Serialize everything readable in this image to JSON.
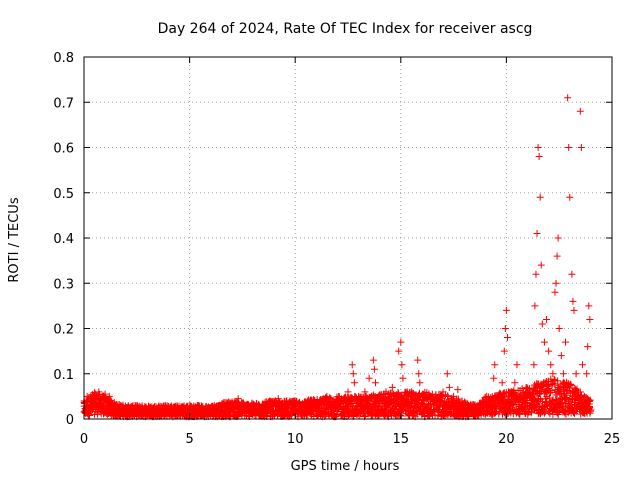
{
  "chart_data": {
    "type": "scatter",
    "title": "Day 264 of 2024, Rate Of TEC Index for receiver ascg",
    "xlabel": "GPS time / hours",
    "ylabel": "ROTI / TECUs",
    "xlim": [
      0,
      25
    ],
    "ylim": [
      0,
      0.8
    ],
    "x_ticks": [
      "0",
      "5",
      "10",
      "15",
      "20",
      "25"
    ],
    "y_ticks": [
      "0",
      "0.1",
      "0.2",
      "0.3",
      "0.4",
      "0.5",
      "0.6",
      "0.7",
      "0.8"
    ],
    "grid": true,
    "marker": "+",
    "color": "#ff0000",
    "points": [
      [
        0.05,
        0.015
      ],
      [
        0.15,
        0.05
      ],
      [
        0.3,
        0.025
      ],
      [
        0.5,
        0.03
      ],
      [
        0.7,
        0.06
      ],
      [
        0.8,
        0.045
      ],
      [
        0.9,
        0.05
      ],
      [
        1.0,
        0.055
      ],
      [
        1.1,
        0.04
      ],
      [
        1.2,
        0.05
      ],
      [
        1.3,
        0.035
      ],
      [
        1.5,
        0.03
      ],
      [
        1.7,
        0.025
      ],
      [
        2.0,
        0.02
      ],
      [
        2.3,
        0.025
      ],
      [
        2.6,
        0.02
      ],
      [
        2.9,
        0.025
      ],
      [
        3.2,
        0.02
      ],
      [
        3.5,
        0.025
      ],
      [
        3.8,
        0.02
      ],
      [
        4.1,
        0.02
      ],
      [
        4.4,
        0.025
      ],
      [
        4.7,
        0.025
      ],
      [
        5.0,
        0.02
      ],
      [
        5.3,
        0.025
      ],
      [
        5.6,
        0.02
      ],
      [
        5.9,
        0.02
      ],
      [
        6.2,
        0.025
      ],
      [
        6.5,
        0.02
      ],
      [
        6.8,
        0.025
      ],
      [
        7.1,
        0.03
      ],
      [
        7.3,
        0.045
      ],
      [
        7.5,
        0.035
      ],
      [
        7.7,
        0.03
      ],
      [
        8.0,
        0.025
      ],
      [
        8.3,
        0.03
      ],
      [
        8.6,
        0.03
      ],
      [
        8.8,
        0.04
      ],
      [
        9.0,
        0.035
      ],
      [
        9.2,
        0.045
      ],
      [
        9.4,
        0.035
      ],
      [
        9.6,
        0.04
      ],
      [
        9.8,
        0.03
      ],
      [
        10.0,
        0.03
      ],
      [
        10.3,
        0.025
      ],
      [
        10.6,
        0.03
      ],
      [
        10.9,
        0.035
      ],
      [
        11.2,
        0.035
      ],
      [
        11.5,
        0.05
      ],
      [
        11.8,
        0.04
      ],
      [
        12.0,
        0.04
      ],
      [
        12.3,
        0.045
      ],
      [
        12.5,
        0.06
      ],
      [
        12.7,
        0.12
      ],
      [
        12.75,
        0.1
      ],
      [
        12.8,
        0.08
      ],
      [
        13.0,
        0.05
      ],
      [
        13.3,
        0.06
      ],
      [
        13.5,
        0.09
      ],
      [
        13.7,
        0.13
      ],
      [
        13.75,
        0.11
      ],
      [
        13.8,
        0.08
      ],
      [
        14.0,
        0.05
      ],
      [
        14.3,
        0.06
      ],
      [
        14.6,
        0.07
      ],
      [
        14.9,
        0.15
      ],
      [
        15.0,
        0.17
      ],
      [
        15.05,
        0.12
      ],
      [
        15.1,
        0.09
      ],
      [
        15.3,
        0.06
      ],
      [
        15.5,
        0.06
      ],
      [
        15.8,
        0.13
      ],
      [
        15.85,
        0.1
      ],
      [
        15.9,
        0.08
      ],
      [
        16.1,
        0.05
      ],
      [
        16.4,
        0.05
      ],
      [
        16.7,
        0.04
      ],
      [
        17.0,
        0.06
      ],
      [
        17.2,
        0.1
      ],
      [
        17.3,
        0.07
      ],
      [
        17.5,
        0.05
      ],
      [
        17.7,
        0.065
      ],
      [
        17.9,
        0.04
      ],
      [
        18.2,
        0.03
      ],
      [
        18.5,
        0.025
      ],
      [
        19.2,
        0.04
      ],
      [
        19.4,
        0.09
      ],
      [
        19.45,
        0.12
      ],
      [
        19.6,
        0.05
      ],
      [
        19.8,
        0.08
      ],
      [
        19.9,
        0.15
      ],
      [
        19.95,
        0.2
      ],
      [
        20.0,
        0.24
      ],
      [
        20.05,
        0.18
      ],
      [
        20.1,
        0.06
      ],
      [
        20.4,
        0.08
      ],
      [
        20.5,
        0.12
      ],
      [
        20.6,
        0.04
      ],
      [
        21.0,
        0.03
      ],
      [
        21.2,
        0.05
      ],
      [
        21.3,
        0.12
      ],
      [
        21.35,
        0.25
      ],
      [
        21.4,
        0.32
      ],
      [
        21.45,
        0.41
      ],
      [
        21.5,
        0.6
      ],
      [
        21.55,
        0.58
      ],
      [
        21.6,
        0.49
      ],
      [
        21.65,
        0.34
      ],
      [
        21.7,
        0.21
      ],
      [
        21.8,
        0.17
      ],
      [
        21.9,
        0.22
      ],
      [
        22.0,
        0.15
      ],
      [
        22.1,
        0.12
      ],
      [
        22.2,
        0.1
      ],
      [
        22.3,
        0.28
      ],
      [
        22.35,
        0.3
      ],
      [
        22.4,
        0.36
      ],
      [
        22.45,
        0.4
      ],
      [
        22.5,
        0.2
      ],
      [
        22.6,
        0.14
      ],
      [
        22.7,
        0.1
      ],
      [
        22.8,
        0.17
      ],
      [
        22.9,
        0.71
      ],
      [
        22.95,
        0.6
      ],
      [
        23.0,
        0.49
      ],
      [
        23.1,
        0.32
      ],
      [
        23.15,
        0.26
      ],
      [
        23.2,
        0.24
      ],
      [
        23.3,
        0.1
      ],
      [
        23.4,
        0.06
      ],
      [
        23.5,
        0.68
      ],
      [
        23.55,
        0.6
      ],
      [
        23.6,
        0.12
      ],
      [
        23.7,
        0.05
      ],
      [
        23.8,
        0.1
      ],
      [
        23.85,
        0.16
      ],
      [
        23.9,
        0.25
      ],
      [
        23.95,
        0.22
      ],
      [
        24.0,
        0.02
      ]
    ],
    "background_band": [
      [
        0.0,
        0.005,
        0.04
      ],
      [
        0.5,
        0.01,
        0.06
      ],
      [
        1.0,
        0.01,
        0.05
      ],
      [
        1.5,
        0.005,
        0.035
      ],
      [
        2.0,
        0.005,
        0.03
      ],
      [
        3.0,
        0.005,
        0.03
      ],
      [
        4.0,
        0.005,
        0.03
      ],
      [
        5.0,
        0.005,
        0.03
      ],
      [
        6.0,
        0.005,
        0.03
      ],
      [
        7.0,
        0.005,
        0.04
      ],
      [
        8.0,
        0.005,
        0.035
      ],
      [
        9.0,
        0.005,
        0.04
      ],
      [
        10.0,
        0.005,
        0.04
      ],
      [
        11.0,
        0.005,
        0.045
      ],
      [
        12.0,
        0.005,
        0.05
      ],
      [
        13.0,
        0.005,
        0.05
      ],
      [
        14.0,
        0.005,
        0.055
      ],
      [
        15.0,
        0.005,
        0.06
      ],
      [
        16.0,
        0.005,
        0.06
      ],
      [
        17.0,
        0.005,
        0.055
      ],
      [
        18.0,
        0.005,
        0.04
      ],
      [
        18.6,
        0.005,
        0.03
      ],
      [
        19.0,
        0.01,
        0.05
      ],
      [
        20.0,
        0.01,
        0.06
      ],
      [
        21.0,
        0.01,
        0.07
      ],
      [
        22.0,
        0.01,
        0.09
      ],
      [
        23.0,
        0.01,
        0.08
      ],
      [
        24.0,
        0.01,
        0.04
      ]
    ]
  }
}
